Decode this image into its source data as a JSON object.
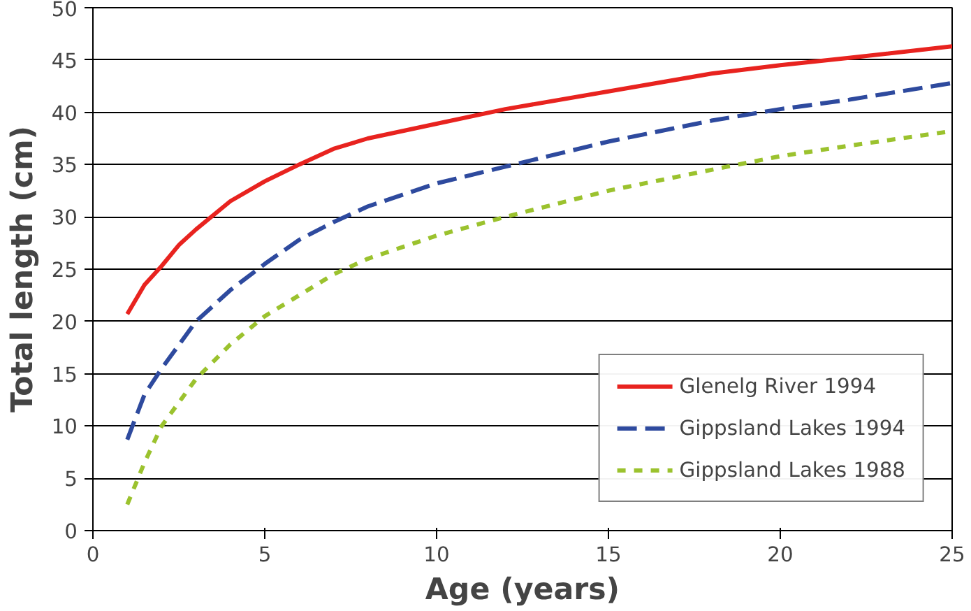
{
  "chart_data": {
    "type": "line",
    "xlabel": "Age (years)",
    "ylabel": "Total length (cm)",
    "xlim": [
      0,
      25
    ],
    "xticks": [
      0,
      5,
      10,
      15,
      20,
      25
    ],
    "ylim": [
      0,
      50
    ],
    "yticks": [
      0,
      5,
      10,
      15,
      20,
      25,
      30,
      35,
      40,
      45,
      50
    ],
    "grid": "y",
    "legend": "bottom right",
    "marker": "none",
    "series": [
      {
        "name": "Glenelg River 1994",
        "color": "#e8231f",
        "line_style": "solid",
        "x": [
          1,
          1.5,
          2,
          2.5,
          3,
          4,
          5,
          6,
          7,
          8,
          10,
          12,
          15,
          18,
          20,
          22,
          25
        ],
        "values": [
          20.7,
          23.5,
          25.3,
          27.3,
          28.8,
          31.5,
          33.4,
          35,
          36.5,
          37.5,
          38.9,
          40.3,
          42,
          43.7,
          44.5,
          45.2,
          46.3
        ]
      },
      {
        "name": "Gippsland Lakes 1994",
        "color": "#2e4a9e",
        "line_style": "dashed",
        "x": [
          1,
          1.5,
          2,
          3,
          4,
          5,
          6,
          7,
          8,
          10,
          12,
          15,
          18,
          20,
          22,
          25
        ],
        "values": [
          8.7,
          13,
          15.5,
          20,
          23,
          25.5,
          27.8,
          29.5,
          31,
          33.2,
          34.8,
          37.2,
          39.2,
          40.3,
          41.2,
          42.8
        ]
      },
      {
        "name": "Gippsland Lakes 1988",
        "color": "#9bc22e",
        "line_style": "dotted",
        "x": [
          1,
          1.5,
          2,
          3,
          4,
          5,
          6,
          7,
          8,
          10,
          12,
          15,
          18,
          20,
          22,
          25
        ],
        "values": [
          2.5,
          6.5,
          10,
          14.5,
          17.8,
          20.5,
          22.5,
          24.5,
          26,
          28.2,
          30,
          32.5,
          34.5,
          35.8,
          36.8,
          38.2
        ]
      }
    ]
  }
}
